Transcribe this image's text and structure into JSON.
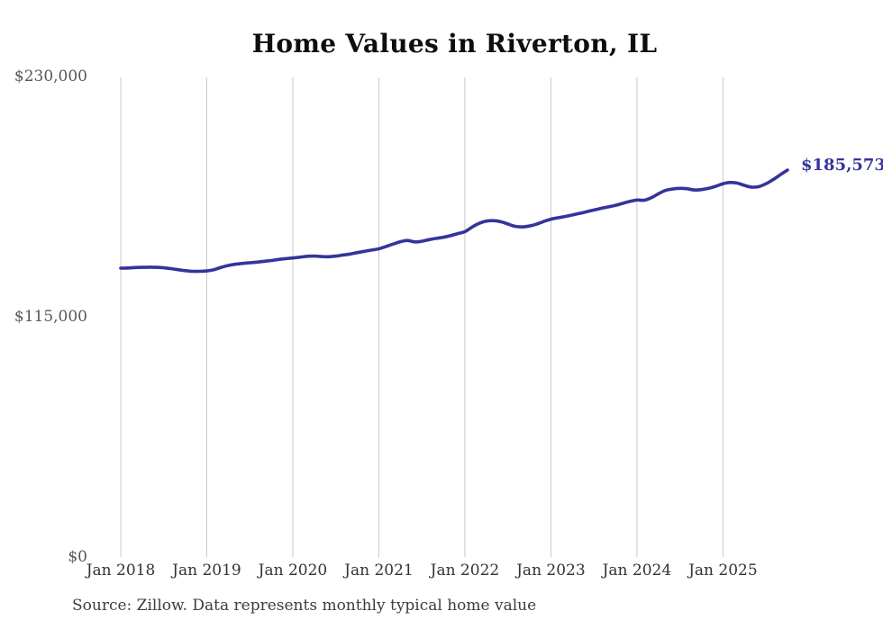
{
  "page": {
    "source_note": "Source: Zillow. Data represents monthly typical home value"
  },
  "chart_data": {
    "type": "line",
    "title": "Home Values in Riverton, IL",
    "series_name": "Monthly typical home value",
    "unit": "USD",
    "line_color": "#34349b",
    "grid_color": "#c9c9c9",
    "grid": "vertical-only",
    "legend_position": "none",
    "end_label": "$185,573",
    "end_value": 185573,
    "ylim": [
      0,
      230000
    ],
    "y_ticks": [
      0,
      115000,
      230000
    ],
    "y_tick_labels": [
      "$0",
      "$115,000",
      "$230,000"
    ],
    "x_tick_labels": [
      "Jan 2018",
      "Jan 2019",
      "Jan 2020",
      "Jan 2021",
      "Jan 2022",
      "Jan 2023",
      "Jan 2024",
      "Jan 2025"
    ],
    "x": [
      "2018-01",
      "2018-02",
      "2018-03",
      "2018-04",
      "2018-05",
      "2018-06",
      "2018-07",
      "2018-08",
      "2018-09",
      "2018-10",
      "2018-11",
      "2018-12",
      "2019-01",
      "2019-02",
      "2019-03",
      "2019-04",
      "2019-05",
      "2019-06",
      "2019-07",
      "2019-08",
      "2019-09",
      "2019-10",
      "2019-11",
      "2019-12",
      "2020-01",
      "2020-02",
      "2020-03",
      "2020-04",
      "2020-05",
      "2020-06",
      "2020-07",
      "2020-08",
      "2020-09",
      "2020-10",
      "2020-11",
      "2020-12",
      "2021-01",
      "2021-02",
      "2021-03",
      "2021-04",
      "2021-05",
      "2021-06",
      "2021-07",
      "2021-08",
      "2021-09",
      "2021-10",
      "2021-11",
      "2021-12",
      "2022-01",
      "2022-02",
      "2022-03",
      "2022-04",
      "2022-05",
      "2022-06",
      "2022-07",
      "2022-08",
      "2022-09",
      "2022-10",
      "2022-11",
      "2022-12",
      "2023-01",
      "2023-02",
      "2023-03",
      "2023-04",
      "2023-05",
      "2023-06",
      "2023-07",
      "2023-08",
      "2023-09",
      "2023-10",
      "2023-11",
      "2023-12",
      "2024-01",
      "2024-02",
      "2024-03",
      "2024-04",
      "2024-05",
      "2024-06",
      "2024-07",
      "2024-08",
      "2024-09",
      "2024-10",
      "2024-11",
      "2024-12",
      "2025-01",
      "2025-02",
      "2025-03",
      "2025-04",
      "2025-05",
      "2025-06",
      "2025-07",
      "2025-08",
      "2025-09",
      "2025-10"
    ],
    "values": [
      138500,
      138600,
      138800,
      138900,
      139000,
      138900,
      138700,
      138300,
      137800,
      137300,
      137000,
      137000,
      137200,
      137800,
      138900,
      139800,
      140400,
      140800,
      141100,
      141400,
      141800,
      142200,
      142700,
      143100,
      143400,
      143800,
      144200,
      144300,
      144100,
      144000,
      144300,
      144800,
      145300,
      146000,
      146600,
      147200,
      147800,
      148900,
      150100,
      151200,
      151800,
      151100,
      151400,
      152200,
      152800,
      153300,
      154100,
      155100,
      156000,
      158200,
      160000,
      161100,
      161300,
      160800,
      159700,
      158600,
      158300,
      158700,
      159600,
      160900,
      162000,
      162700,
      163300,
      164000,
      164800,
      165600,
      166400,
      167200,
      167900,
      168600,
      169600,
      170500,
      171200,
      171100,
      172300,
      174200,
      175800,
      176500,
      176800,
      176600,
      176000,
      176200,
      176800,
      177800,
      179000,
      179600,
      179300,
      178200,
      177400,
      177600,
      179000,
      181000,
      183300,
      185573
    ]
  }
}
